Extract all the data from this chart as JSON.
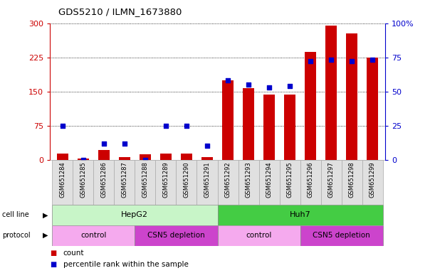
{
  "title": "GDS5210 / ILMN_1673880",
  "samples": [
    "GSM651284",
    "GSM651285",
    "GSM651286",
    "GSM651287",
    "GSM651288",
    "GSM651289",
    "GSM651290",
    "GSM651291",
    "GSM651292",
    "GSM651293",
    "GSM651294",
    "GSM651295",
    "GSM651296",
    "GSM651297",
    "GSM651298",
    "GSM651299"
  ],
  "counts": [
    13,
    3,
    22,
    5,
    12,
    14,
    13,
    5,
    175,
    158,
    143,
    143,
    237,
    295,
    278,
    225
  ],
  "percentile_ranks": [
    25,
    0,
    12,
    12,
    0,
    25,
    25,
    10,
    58,
    55,
    53,
    54,
    72,
    73,
    72,
    73
  ],
  "bar_color": "#cc0000",
  "dot_color": "#0000cc",
  "left_axis_color": "#cc0000",
  "right_axis_color": "#0000cc",
  "left_ylim": [
    0,
    300
  ],
  "right_ylim": [
    0,
    100
  ],
  "left_yticks": [
    0,
    75,
    150,
    225,
    300
  ],
  "right_yticks": [
    0,
    25,
    50,
    75,
    100
  ],
  "right_yticklabels": [
    "0",
    "25",
    "50",
    "75",
    "100%"
  ],
  "cell_line_groups": [
    {
      "label": "HepG2",
      "start": 0,
      "end": 8,
      "color": "#c8f5c8"
    },
    {
      "label": "Huh7",
      "start": 8,
      "end": 16,
      "color": "#44cc44"
    }
  ],
  "protocol_groups": [
    {
      "label": "control",
      "start": 0,
      "end": 4,
      "color": "#f5aaee"
    },
    {
      "label": "CSN5 depletion",
      "start": 4,
      "end": 8,
      "color": "#cc44cc"
    },
    {
      "label": "control",
      "start": 8,
      "end": 12,
      "color": "#f5aaee"
    },
    {
      "label": "CSN5 depletion",
      "start": 12,
      "end": 16,
      "color": "#cc44cc"
    }
  ],
  "legend_count_label": "count",
  "legend_pct_label": "percentile rank within the sample",
  "bg_color": "#ffffff"
}
